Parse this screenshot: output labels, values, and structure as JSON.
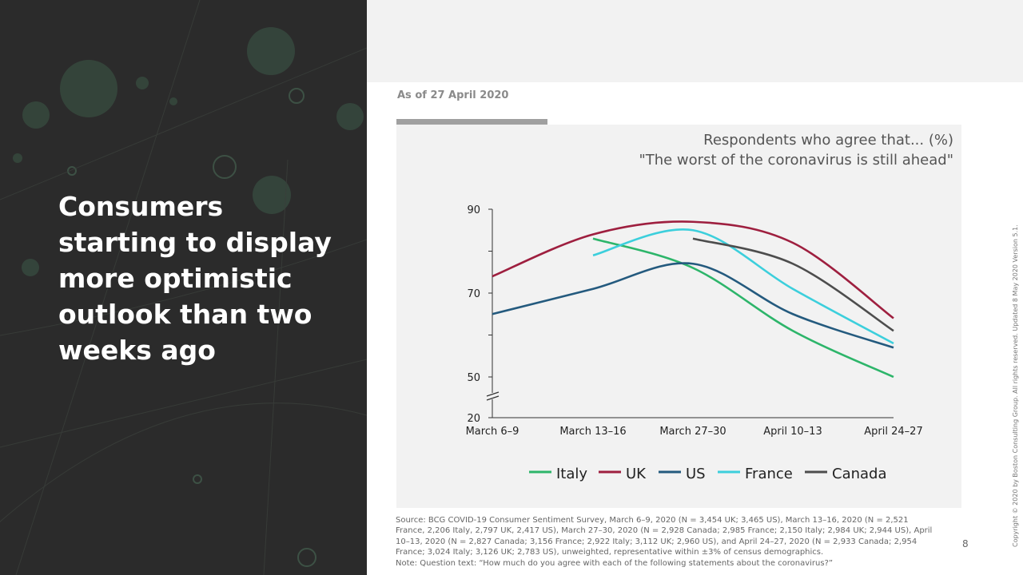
{
  "headline": "Consumers starting to display more optimistic outlook than two weeks ago",
  "as_of": "As of 27 April 2020",
  "chart_data": {
    "type": "line",
    "title": "Respondents who agree that... (%)",
    "subtitle": "\"The worst of the coronavirus is still ahead\"",
    "categories": [
      "March 6–9",
      "March  13–16",
      "March  27–30",
      "April 10–13",
      "April  24–27"
    ],
    "y_ticks": [
      20,
      50,
      70,
      90
    ],
    "axis_break": true,
    "ylim": [
      20,
      90
    ],
    "series": [
      {
        "name": "Italy",
        "color": "#2db56a",
        "values": [
          null,
          83,
          76,
          61,
          50
        ]
      },
      {
        "name": "UK",
        "color": "#9e1f3f",
        "values": [
          74,
          84,
          87,
          82,
          64
        ]
      },
      {
        "name": "US",
        "color": "#245a7e",
        "values": [
          65,
          71,
          77,
          65,
          57
        ]
      },
      {
        "name": "France",
        "color": "#3ccfdc",
        "values": [
          null,
          79,
          85,
          71,
          58
        ]
      },
      {
        "name": "Canada",
        "color": "#4d4d4d",
        "values": [
          null,
          null,
          83,
          77,
          61
        ]
      }
    ],
    "legend_position": "bottom",
    "grid": false
  },
  "source": "Source: BCG COVID-19 Consumer Sentiment Survey, March 6–9, 2020 (N = 3,454 UK; 3,465 US), March 13–16, 2020 (N = 2,521 France, 2,206 Italy, 2,797 UK,  2,417 US), March 27–30, 2020 (N = 2,928 Canada; 2,985 France; 2,150 Italy; 2,984 UK; 2,944 US), April 10–13, 2020 (N = 2,827 Canada; 3,156 France; 2,922 Italy; 3,112 UK; 2,960 US), and April 24–27, 2020 (N = 2,933 Canada; 2,954 France; 3,024 Italy; 3,126 UK; 2,783 US), unweighted, representative within ±3% of census demographics.",
  "note": "Note: Question text: “How much do you agree with each of the following statements about the coronavirus?”",
  "page_number": "8",
  "copyright": "Copyright © 2020 by Boston Consulting Group. All rights reserved.  Updated 8 May 2020 Version 5.1."
}
